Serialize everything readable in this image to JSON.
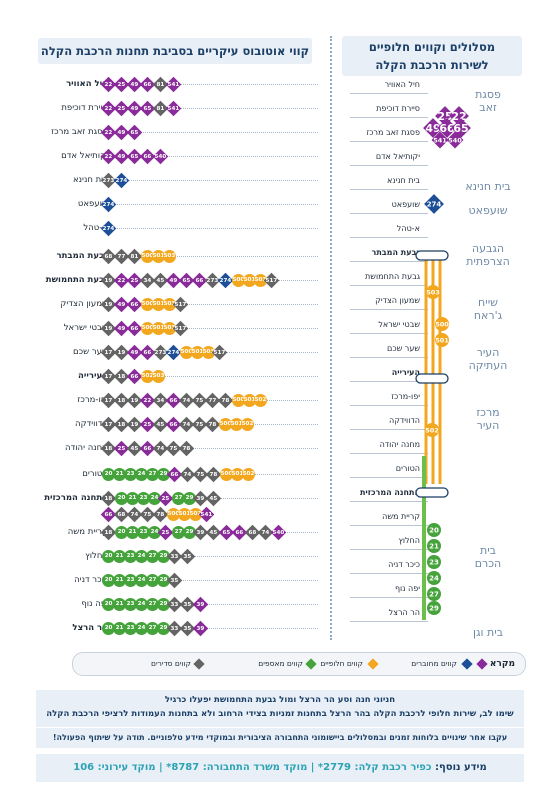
{
  "left_title": "קווי אוטובוס עיקריים בסביבת תחנות הרכבת הקלה",
  "right_title_1": "מסלולים וקווים חלופיים",
  "right_title_2": "לשירות הרכבת הקלה",
  "stations": [
    {
      "name": "חיל האוויר",
      "bold": true,
      "chips": [
        [
          "p",
          "22"
        ],
        [
          "p",
          "25"
        ],
        [
          "p",
          "49"
        ],
        [
          "p",
          "66"
        ],
        [
          "d",
          "81"
        ],
        [
          "p",
          "541"
        ]
      ]
    },
    {
      "name": "סיירת דוכיפת",
      "bold": false,
      "chips": [
        [
          "p",
          "22"
        ],
        [
          "p",
          "25"
        ],
        [
          "p",
          "49"
        ],
        [
          "p",
          "65"
        ],
        [
          "d",
          "81"
        ],
        [
          "p",
          "541"
        ]
      ]
    },
    {
      "name": "פסגת זאב מרכז",
      "bold": false,
      "chips": [
        [
          "p",
          "22"
        ],
        [
          "p",
          "49"
        ],
        [
          "p",
          "65"
        ]
      ]
    },
    {
      "name": "יקותיאל אדם",
      "bold": false,
      "chips": [
        [
          "p",
          "22"
        ],
        [
          "p",
          "49"
        ],
        [
          "p",
          "65"
        ],
        [
          "p",
          "66"
        ],
        [
          "p",
          "540"
        ]
      ]
    },
    {
      "name": "בית חנינא",
      "bold": false,
      "chips": [
        [
          "d",
          "273"
        ],
        [
          "b",
          "274"
        ]
      ]
    },
    {
      "name": "שועפאט",
      "bold": false,
      "chips": [
        [
          "b",
          "274"
        ]
      ]
    },
    {
      "name": "א-טהל",
      "bold": false,
      "chips": [
        [
          "b",
          "274"
        ]
      ]
    },
    {
      "name": "גבעת המבתר",
      "bold": true,
      "chips": [
        [
          "d",
          "68"
        ],
        [
          "d",
          "77"
        ],
        [
          "d",
          "81"
        ],
        [
          "o",
          "500"
        ],
        [
          "o",
          "501"
        ],
        [
          "o",
          "503"
        ]
      ]
    },
    {
      "name": "גבעת התחמושת",
      "bold": true,
      "chips": [
        [
          "d",
          "19"
        ],
        [
          "p",
          "22"
        ],
        [
          "p",
          "25"
        ],
        [
          "d",
          "34"
        ],
        [
          "d",
          "45"
        ],
        [
          "p",
          "49"
        ],
        [
          "p",
          "65"
        ],
        [
          "p",
          "66"
        ],
        [
          "d",
          "273"
        ],
        [
          "b",
          "274"
        ],
        [
          "o",
          "500"
        ],
        [
          "o",
          "501"
        ],
        [
          "o",
          "503"
        ],
        [
          "d",
          "517"
        ]
      ]
    },
    {
      "name": "שמעון הצדיק",
      "bold": false,
      "chips": [
        [
          "d",
          "19"
        ],
        [
          "p",
          "49"
        ],
        [
          "p",
          "66"
        ],
        [
          "o",
          "500"
        ],
        [
          "o",
          "501"
        ],
        [
          "o",
          "503"
        ],
        [
          "d",
          "517"
        ]
      ]
    },
    {
      "name": "שבטי ישראל",
      "bold": false,
      "chips": [
        [
          "d",
          "19"
        ],
        [
          "p",
          "49"
        ],
        [
          "p",
          "66"
        ],
        [
          "o",
          "500"
        ],
        [
          "o",
          "501"
        ],
        [
          "o",
          "503"
        ],
        [
          "d",
          "517"
        ]
      ]
    },
    {
      "name": "שער שכם",
      "bold": false,
      "chips": [
        [
          "d",
          "17"
        ],
        [
          "d",
          "19"
        ],
        [
          "p",
          "49"
        ],
        [
          "p",
          "66"
        ],
        [
          "d",
          "273"
        ],
        [
          "b",
          "274"
        ],
        [
          "o",
          "500"
        ],
        [
          "o",
          "501"
        ],
        [
          "o",
          "503"
        ],
        [
          "d",
          "517"
        ]
      ]
    },
    {
      "name": "העירייה",
      "bold": true,
      "chips": [
        [
          "d",
          "17"
        ],
        [
          "d",
          "18"
        ],
        [
          "p",
          "66"
        ],
        [
          "o",
          "502"
        ],
        [
          "o",
          "503"
        ]
      ]
    },
    {
      "name": "יפו-מרכז",
      "bold": false,
      "chips": [
        [
          "d",
          "17"
        ],
        [
          "d",
          "18"
        ],
        [
          "d",
          "19"
        ],
        [
          "p",
          "22"
        ],
        [
          "d",
          "34"
        ],
        [
          "p",
          "66"
        ],
        [
          "d",
          "74"
        ],
        [
          "d",
          "75"
        ],
        [
          "d",
          "77"
        ],
        [
          "d",
          "78"
        ],
        [
          "o",
          "500"
        ],
        [
          "o",
          "501"
        ],
        [
          "o",
          "502"
        ]
      ]
    },
    {
      "name": "הדווידקה",
      "bold": false,
      "chips": [
        [
          "d",
          "17"
        ],
        [
          "d",
          "18"
        ],
        [
          "d",
          "19"
        ],
        [
          "p",
          "25"
        ],
        [
          "d",
          "45"
        ],
        [
          "p",
          "66"
        ],
        [
          "d",
          "74"
        ],
        [
          "d",
          "75"
        ],
        [
          "d",
          "78"
        ],
        [
          "o",
          "500"
        ],
        [
          "o",
          "501"
        ],
        [
          "o",
          "502"
        ]
      ]
    },
    {
      "name": "מחנה יהודה",
      "bold": false,
      "chips": [
        [
          "d",
          "18"
        ],
        [
          "p",
          "25"
        ],
        [
          "d",
          "45"
        ],
        [
          "p",
          "66"
        ],
        [
          "d",
          "74"
        ],
        [
          "d",
          "75"
        ],
        [
          "d",
          "78"
        ]
      ]
    },
    {
      "name": "הטורים",
      "bold": false,
      "chips": [
        [
          "g",
          "20"
        ],
        [
          "g",
          "21"
        ],
        [
          "g",
          "23"
        ],
        [
          "g",
          "24"
        ],
        [
          "g",
          "27"
        ],
        [
          "g",
          "29"
        ],
        [
          "p",
          "66"
        ],
        [
          "d",
          "74"
        ],
        [
          "d",
          "75"
        ],
        [
          "d",
          "78"
        ],
        [
          "o",
          "500"
        ],
        [
          "o",
          "501"
        ],
        [
          "o",
          "502"
        ]
      ]
    },
    {
      "name": "התחנה המרכזית",
      "bold": true,
      "chips": [
        [
          "d",
          "18"
        ],
        [
          "g",
          "20"
        ],
        [
          "g",
          "21"
        ],
        [
          "g",
          "23"
        ],
        [
          "g",
          "24"
        ],
        [
          "p",
          "25"
        ],
        [
          "g",
          "27"
        ],
        [
          "g",
          "29"
        ],
        [
          "d",
          "39"
        ],
        [
          "d",
          "45"
        ]
      ],
      "chips2": [
        [
          "p",
          "66"
        ],
        [
          "d",
          "68"
        ],
        [
          "d",
          "74"
        ],
        [
          "d",
          "75"
        ],
        [
          "d",
          "78"
        ],
        [
          "o",
          "500"
        ],
        [
          "o",
          "501"
        ],
        [
          "o",
          "502"
        ],
        [
          "p",
          "541"
        ]
      ]
    },
    {
      "name": "קריית משה",
      "bold": false,
      "chips": [
        [
          "d",
          "18"
        ],
        [
          "g",
          "20"
        ],
        [
          "g",
          "21"
        ],
        [
          "g",
          "23"
        ],
        [
          "g",
          "24"
        ],
        [
          "p",
          "25"
        ],
        [
          "g",
          "27"
        ],
        [
          "g",
          "29"
        ],
        [
          "d",
          "39"
        ],
        [
          "d",
          "45"
        ],
        [
          "p",
          "65"
        ],
        [
          "p",
          "66"
        ],
        [
          "d",
          "68"
        ],
        [
          "d",
          "74"
        ],
        [
          "p",
          "540"
        ]
      ]
    },
    {
      "name": "החלוץ",
      "bold": false,
      "chips": [
        [
          "g",
          "20"
        ],
        [
          "g",
          "21"
        ],
        [
          "g",
          "23"
        ],
        [
          "g",
          "24"
        ],
        [
          "g",
          "27"
        ],
        [
          "g",
          "29"
        ],
        [
          "d",
          "33"
        ],
        [
          "d",
          "35"
        ]
      ]
    },
    {
      "name": "כיכר דניה",
      "bold": false,
      "chips": [
        [
          "g",
          "20"
        ],
        [
          "g",
          "21"
        ],
        [
          "g",
          "23"
        ],
        [
          "g",
          "24"
        ],
        [
          "g",
          "27"
        ],
        [
          "g",
          "29"
        ],
        [
          "d",
          "35"
        ]
      ]
    },
    {
      "name": "יפה נוף",
      "bold": false,
      "chips": [
        [
          "g",
          "20"
        ],
        [
          "g",
          "21"
        ],
        [
          "g",
          "23"
        ],
        [
          "g",
          "24"
        ],
        [
          "g",
          "27"
        ],
        [
          "g",
          "29"
        ],
        [
          "d",
          "33"
        ],
        [
          "d",
          "35"
        ],
        [
          "p",
          "39"
        ]
      ]
    },
    {
      "name": "הר הרצל",
      "bold": true,
      "chips": [
        [
          "g",
          "20"
        ],
        [
          "g",
          "21"
        ],
        [
          "g",
          "23"
        ],
        [
          "g",
          "24"
        ],
        [
          "g",
          "27"
        ],
        [
          "g",
          "29"
        ],
        [
          "d",
          "33"
        ],
        [
          "d",
          "35"
        ],
        [
          "p",
          "39"
        ]
      ]
    }
  ],
  "right_stops": [
    {
      "name": "חיל האוויר",
      "bold": false
    },
    {
      "name": "סיירת דוכיפת",
      "bold": false
    },
    {
      "name": "פסגת זאב מרכז",
      "bold": false
    },
    {
      "name": "יקותיאל אדם",
      "bold": false
    },
    {
      "name": "בית חנינא",
      "bold": false
    },
    {
      "name": "שועפאט",
      "bold": false
    },
    {
      "name": "א-טהל",
      "bold": false
    },
    {
      "name": "גבעת המבתר",
      "bold": true
    },
    {
      "name": "גבעת התחמושת",
      "bold": false
    },
    {
      "name": "שמעון הצדיק",
      "bold": false
    },
    {
      "name": "שבטי ישראל",
      "bold": false
    },
    {
      "name": "שער שכם",
      "bold": false
    },
    {
      "name": "העירייה",
      "bold": true
    },
    {
      "name": "יפו-מרכז",
      "bold": false
    },
    {
      "name": "הדווידקה",
      "bold": false
    },
    {
      "name": "מחנה יהודה",
      "bold": false
    },
    {
      "name": "הטורים",
      "bold": false
    },
    {
      "name": "התחנה המרכזית",
      "bold": true
    },
    {
      "name": "קריית משה",
      "bold": false
    },
    {
      "name": "החלוץ",
      "bold": false
    },
    {
      "name": "כיכר דניה",
      "bold": false
    },
    {
      "name": "יפה נוף",
      "bold": false
    },
    {
      "name": "הר הרצל",
      "bold": false
    }
  ],
  "zones": {
    "pisgat_zeev_1": "פסגת",
    "pisgat_zeev_2": "זאב",
    "beit_hanina": "בית חנינא",
    "shuafat": "שועפאט",
    "givah_1": "הגבעה",
    "givah_2": "הצרפתית",
    "sheikh_1": "שייח",
    "sheikh_2": "ג'ראח",
    "old_city_1": "העיר",
    "old_city_2": "העתיקה",
    "center_1": "מרכז",
    "center_2": "העיר",
    "beit_hakerem_1": "בית",
    "beit_hakerem_2": "הכרם",
    "bayit_vagan": "בית וגן"
  },
  "right_badges": {
    "purple": [
      "25",
      "22",
      "49",
      "66",
      "65",
      "541",
      "540"
    ],
    "blue": "274",
    "orange_left": "503",
    "orange_a": "500",
    "orange_b": "501",
    "orange_c": "502",
    "green": [
      "20",
      "21",
      "23",
      "24",
      "27",
      "29"
    ]
  },
  "legend": {
    "title": "מקרא",
    "item1": "קווים מחוברים",
    "item2": "קווים חלופיים",
    "item3": "קווים מאספים",
    "item4": "קווים סדירים"
  },
  "notice1": "חניוני חנה וסע הר הרצל ומול גבעת התחמושת יפעלו כרגיל",
  "notice2": "שימו לב, שירות חלופי לרכבת הקלה בהר הרצל בתחנות זמניות בצידי הרחוב ולא בתחנות העמודות לרציפי הרכבת הקלה",
  "notice3": "עקבו אחר שינויים בלוחות זמנים ובמסלולים ביישומוני התחבורה הציבורית ובמוקדי מידע טלפוניים. תודה על שיתוף הפעולה!",
  "footer": {
    "label": "מידע נוסף:",
    "text": "כפיר רכבת קלה: 2779*  |  מוקד משרד התחבורה: 8787*  |  מוקד עירוני: 106"
  },
  "colors": {
    "purple": "#8a2b9a",
    "orange": "#f3a71f",
    "green": "#44a33a",
    "gray": "#646464",
    "blue": "#1c4f97",
    "navy": "#1b3f66"
  }
}
